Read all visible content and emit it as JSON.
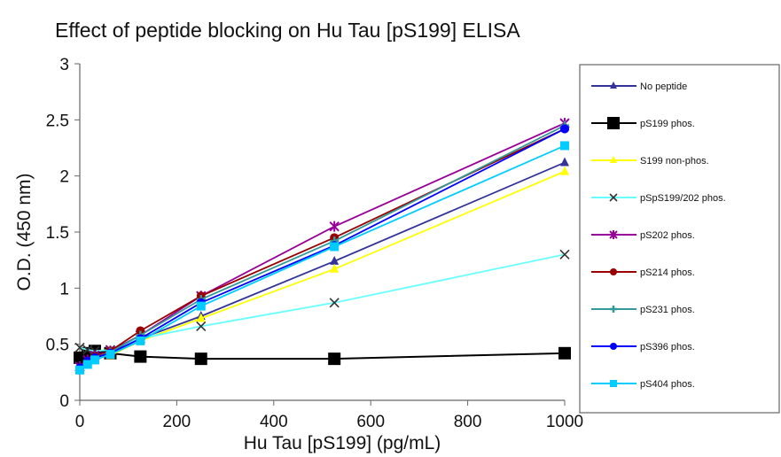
{
  "chart_data": {
    "type": "line",
    "title": "Effect of peptide blocking on Hu Tau [pS199] ELISA",
    "xlabel": "Hu Tau [pS199] (pg/mL)",
    "ylabel": "O.D. (450 nm)",
    "xlim": [
      0,
      1000
    ],
    "ylim": [
      0,
      3
    ],
    "x_ticks": [
      "0",
      "200",
      "400",
      "600",
      "800",
      "1000"
    ],
    "y_ticks": [
      "0",
      "0.5",
      "1",
      "1.5",
      "2",
      "2.5",
      "3"
    ],
    "grid": false,
    "legend_position": "right",
    "x": [
      0,
      16,
      31,
      63,
      125,
      250,
      525,
      1000
    ],
    "series": [
      {
        "name": "No peptide",
        "color": "#33339a",
        "marker": "triangle",
        "values": [
          0.32,
          0.38,
          0.42,
          0.44,
          0.55,
          0.75,
          1.24,
          2.12
        ]
      },
      {
        "name": "pS199 phos.",
        "color": "#000000",
        "marker": "square-large",
        "values": [
          0.38,
          0.42,
          0.44,
          0.42,
          0.39,
          0.37,
          0.37,
          0.42
        ]
      },
      {
        "name": "S199 non-phos.",
        "color": "#ffff00",
        "marker": "triangle",
        "values": [
          0.3,
          0.35,
          0.38,
          0.4,
          0.53,
          0.73,
          1.17,
          2.04
        ]
      },
      {
        "name": "pSpS199/202 phos.",
        "color": "#66ffff",
        "marker": "x",
        "values": [
          0.47,
          0.45,
          0.44,
          0.45,
          0.55,
          0.66,
          0.87,
          1.3
        ]
      },
      {
        "name": "pS202 phos.",
        "color": "#990099",
        "marker": "star",
        "values": [
          0.3,
          0.36,
          0.4,
          0.44,
          0.58,
          0.93,
          1.55,
          2.47
        ]
      },
      {
        "name": "pS214 phos.",
        "color": "#990000",
        "marker": "circle",
        "values": [
          0.28,
          0.35,
          0.39,
          0.44,
          0.62,
          0.93,
          1.45,
          2.42
        ]
      },
      {
        "name": "pS231 phos.",
        "color": "#339999",
        "marker": "plus",
        "values": [
          0.27,
          0.34,
          0.38,
          0.43,
          0.58,
          0.9,
          1.42,
          2.45
        ]
      },
      {
        "name": "pS396 phos.",
        "color": "#0000ff",
        "marker": "circle",
        "values": [
          0.29,
          0.35,
          0.38,
          0.42,
          0.55,
          0.87,
          1.38,
          2.42
        ]
      },
      {
        "name": "pS404 phos.",
        "color": "#00ccff",
        "marker": "square",
        "values": [
          0.27,
          0.32,
          0.36,
          0.41,
          0.53,
          0.84,
          1.37,
          2.27
        ]
      }
    ]
  }
}
